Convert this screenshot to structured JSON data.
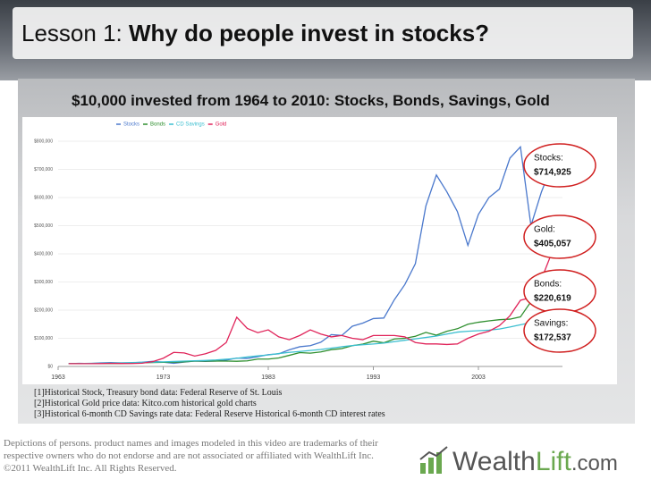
{
  "header": {
    "lesson": "Lesson 1:",
    "title": "Why do people invest in stocks?"
  },
  "chart_data": {
    "type": "line",
    "title": "$10,000 invested from 1964 to 2010: Stocks, Bonds, Savings, Gold",
    "x": [
      1964,
      1965,
      1966,
      1967,
      1968,
      1969,
      1970,
      1971,
      1972,
      1973,
      1974,
      1975,
      1976,
      1977,
      1978,
      1979,
      1980,
      1981,
      1982,
      1983,
      1984,
      1985,
      1986,
      1987,
      1988,
      1989,
      1990,
      1991,
      1992,
      1993,
      1994,
      1995,
      1996,
      1997,
      1998,
      1999,
      2000,
      2001,
      2002,
      2003,
      2004,
      2005,
      2006,
      2007,
      2008,
      2009,
      2010
    ],
    "series": [
      {
        "name": "Stocks",
        "color": "#4a78cc",
        "values": [
          10000,
          11200,
          10100,
          12500,
          13900,
          12700,
          13200,
          15100,
          18000,
          15300,
          11300,
          15500,
          19200,
          17800,
          19000,
          22500,
          29800,
          28300,
          34400,
          42100,
          44800,
          59000,
          70000,
          73700,
          86000,
          113000,
          110000,
          143000,
          154000,
          170000,
          172000,
          237000,
          291000,
          365000,
          570000,
          680000,
          620000,
          550000,
          430000,
          540000,
          600000,
          630000,
          740000,
          780000,
          500000,
          620000,
          714925
        ]
      },
      {
        "name": "Bonds",
        "color": "#2f8f2f",
        "values": [
          10000,
          10100,
          10300,
          10200,
          10400,
          10500,
          11700,
          13100,
          14100,
          14700,
          15100,
          16300,
          19000,
          19000,
          19200,
          19000,
          18500,
          19800,
          26200,
          26300,
          30100,
          39500,
          49200,
          47300,
          51700,
          59700,
          63400,
          73800,
          79300,
          89800,
          84000,
          97500,
          100000,
          107000,
          121000,
          111000,
          125000,
          134000,
          150000,
          157000,
          162000,
          166000,
          168000,
          176000,
          230000,
          200000,
          220619
        ]
      },
      {
        "name": "CD Savings",
        "color": "#3cbfd0",
        "values": [
          10000,
          10400,
          10900,
          11500,
          12100,
          12800,
          13800,
          14500,
          15200,
          16300,
          17700,
          19000,
          20200,
          21300,
          23000,
          25600,
          29000,
          33500,
          37500,
          41000,
          45800,
          50000,
          53300,
          56700,
          60300,
          65000,
          70000,
          74200,
          77200,
          79700,
          83000,
          88000,
          93000,
          98000,
          103000,
          108000,
          115000,
          122000,
          125000,
          127000,
          129000,
          133000,
          140000,
          148000,
          156000,
          166000,
          172537
        ]
      },
      {
        "name": "Gold",
        "color": "#e0245a",
        "values": [
          10000,
          10000,
          10000,
          10100,
          11000,
          10500,
          10300,
          11500,
          17000,
          29000,
          50000,
          48000,
          37000,
          45000,
          57000,
          85000,
          175000,
          135000,
          120000,
          130000,
          105000,
          95000,
          110000,
          130000,
          115000,
          105000,
          110000,
          100000,
          95000,
          110000,
          110000,
          110000,
          105000,
          85000,
          80000,
          80000,
          78000,
          80000,
          100000,
          115000,
          125000,
          145000,
          180000,
          235000,
          245000,
          310000,
          405057
        ]
      }
    ],
    "xlim": [
      1963,
      2011
    ],
    "xticks": [
      1963,
      1973,
      1983,
      1993,
      2003
    ],
    "ylim": [
      0,
      800000
    ],
    "yticks": [
      {
        "value": 0,
        "label": "$0"
      },
      {
        "value": 100000,
        "label": "$100,000"
      },
      {
        "value": 200000,
        "label": "$200,000"
      },
      {
        "value": 300000,
        "label": "$300,000"
      },
      {
        "value": 400000,
        "label": "$400,000"
      },
      {
        "value": 500000,
        "label": "$500,000"
      },
      {
        "value": 600000,
        "label": "$600,000"
      },
      {
        "value": 700000,
        "label": "$700,000"
      },
      {
        "value": 800000,
        "label": "$800,000"
      }
    ],
    "grid": true
  },
  "callouts": [
    {
      "label": "Stocks:",
      "value": "$714,925"
    },
    {
      "label": "Gold:",
      "value": "$405,057"
    },
    {
      "label": "Bonds:",
      "value": "$220,619"
    },
    {
      "label": "Savings:",
      "value": "$172,537"
    }
  ],
  "footnotes": [
    "[1]Historical Stock, Treasury bond data: Federal Reserve of St. Louis",
    "[2]Historical Gold price data: Kitco.com historical gold charts",
    "[3]Historical 6-month CD Savings rate data: Federal Reserve Historical 6-month CD interest rates"
  ],
  "disclaimer": [
    "Depictions of persons. product names and images modeled in this video are trademarks of their",
    "respective owners who do not endorse and are not associated or affiliated with WealthLift Inc.",
    "©2011 WealthLift Inc. All Rights Reserved."
  ],
  "logo": {
    "part1": "Wealth",
    "part2": "Lift",
    "part3": ".com"
  }
}
